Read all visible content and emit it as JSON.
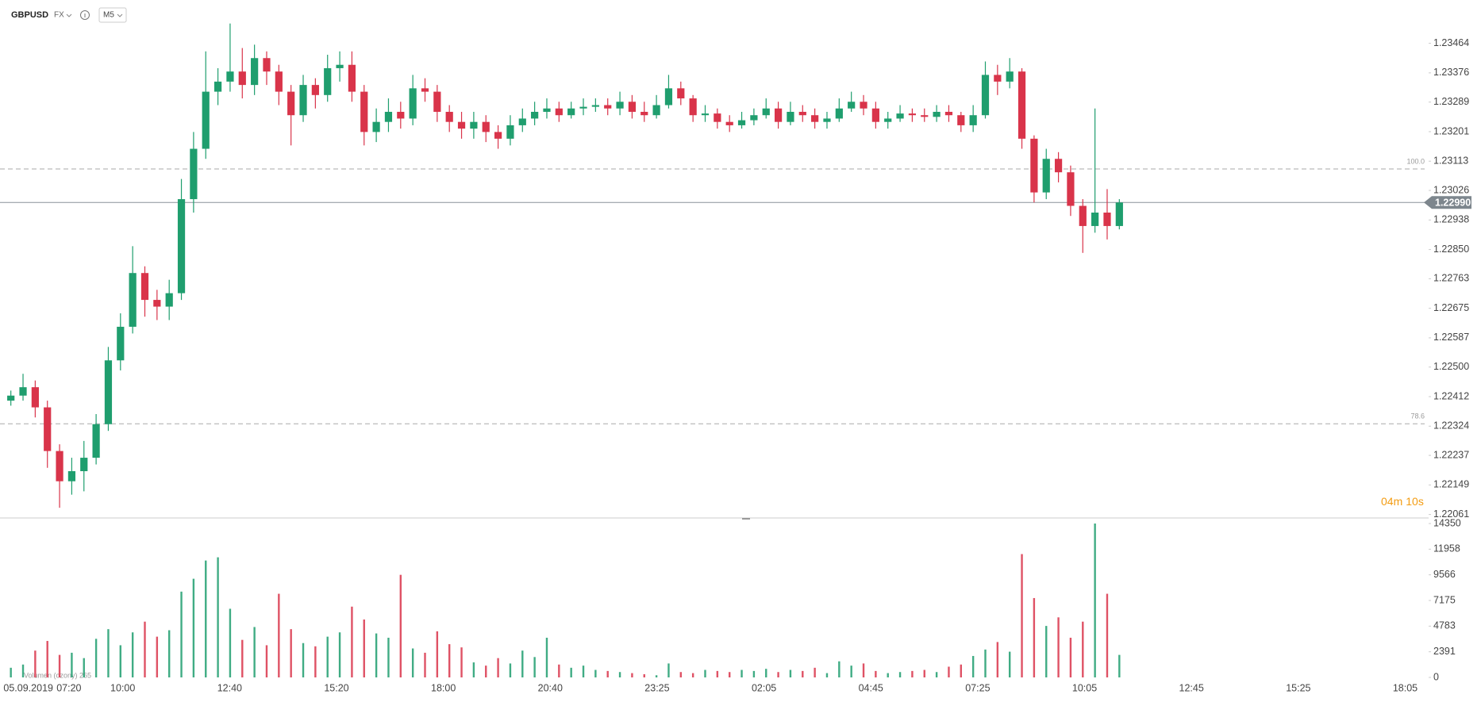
{
  "chart_data": {
    "type": "candlestick",
    "symbol": "GBPUSD",
    "market": "FX",
    "timeframe": "M5",
    "up_color": "#1f9e6e",
    "down_color": "#d9344a",
    "open": [
      1.224,
      1.22415,
      1.2244,
      1.2238,
      1.2225,
      1.2216,
      1.2219,
      1.2223,
      1.2233,
      1.2252,
      1.2262,
      1.2278,
      1.227,
      1.2268,
      1.2272,
      1.23,
      1.2315,
      1.2332,
      1.2335,
      1.2338,
      1.2334,
      1.2342,
      1.2338,
      1.2332,
      1.2325,
      1.2334,
      1.2331,
      1.2339,
      1.234,
      1.2332,
      1.232,
      1.2323,
      1.2326,
      1.2324,
      1.2333,
      1.2332,
      1.2326,
      1.2323,
      1.2321,
      1.2323,
      1.232,
      1.2318,
      1.2322,
      1.2324,
      1.2326,
      1.2327,
      1.2325,
      1.2327,
      1.23275,
      1.2328,
      1.2327,
      1.2329,
      1.2326,
      1.2325,
      1.2328,
      1.2333,
      1.233,
      1.2325,
      1.23255,
      1.2323,
      1.2322,
      1.23235,
      1.2325,
      1.2327,
      1.2323,
      1.2326,
      1.2325,
      1.2323,
      1.2324,
      1.2327,
      1.2329,
      1.2327,
      1.2323,
      1.2324,
      1.23255,
      1.2325,
      1.23245,
      1.2326,
      1.2325,
      1.2322,
      1.2325,
      1.2337,
      1.2335,
      1.2338,
      1.2318,
      1.2302,
      1.2312,
      1.2308,
      1.2298,
      1.2292,
      1.2296,
      1.2292
    ],
    "high": [
      1.2243,
      1.2248,
      1.2246,
      1.224,
      1.2227,
      1.2223,
      1.2228,
      1.2236,
      1.2256,
      1.2266,
      1.2286,
      1.228,
      1.2273,
      1.2276,
      1.2306,
      1.232,
      1.2344,
      1.2339,
      1.23523,
      1.2345,
      1.2346,
      1.2344,
      1.234,
      1.2334,
      1.2337,
      1.2336,
      1.2343,
      1.2344,
      1.2344,
      1.2334,
      1.2327,
      1.233,
      1.2329,
      1.2337,
      1.2336,
      1.2334,
      1.2328,
      1.2326,
      1.2326,
      1.2325,
      1.2322,
      1.2325,
      1.2327,
      1.2329,
      1.233,
      1.2329,
      1.2329,
      1.233,
      1.233,
      1.233,
      1.2332,
      1.2331,
      1.2329,
      1.2331,
      1.2337,
      1.2335,
      1.2331,
      1.2328,
      1.2327,
      1.2325,
      1.2326,
      1.2327,
      1.233,
      1.2329,
      1.2329,
      1.2328,
      1.2327,
      1.2326,
      1.233,
      1.2332,
      1.2331,
      1.2329,
      1.2326,
      1.2328,
      1.2327,
      1.2327,
      1.2328,
      1.2328,
      1.2326,
      1.2328,
      1.2341,
      1.234,
      1.2342,
      1.2339,
      1.2319,
      1.2315,
      1.2314,
      1.231,
      1.23,
      1.2327,
      1.2303,
      1.23
    ],
    "low": [
      1.22385,
      1.224,
      1.2235,
      1.222,
      1.22081,
      1.2212,
      1.2213,
      1.2221,
      1.2231,
      1.2249,
      1.226,
      1.2265,
      1.2264,
      1.2264,
      1.227,
      1.2296,
      1.2312,
      1.2328,
      1.2332,
      1.233,
      1.2331,
      1.2334,
      1.2328,
      1.2316,
      1.2323,
      1.2327,
      1.2329,
      1.2335,
      1.2329,
      1.2316,
      1.2317,
      1.232,
      1.2321,
      1.2322,
      1.2329,
      1.2323,
      1.232,
      1.2318,
      1.2318,
      1.2317,
      1.2315,
      1.2316,
      1.232,
      1.2322,
      1.2324,
      1.2323,
      1.2324,
      1.2325,
      1.2326,
      1.2325,
      1.2325,
      1.2324,
      1.2323,
      1.2324,
      1.2327,
      1.2328,
      1.2323,
      1.2323,
      1.2321,
      1.232,
      1.2321,
      1.2322,
      1.2324,
      1.2321,
      1.2322,
      1.2323,
      1.2321,
      1.2321,
      1.2323,
      1.2326,
      1.2325,
      1.2321,
      1.2321,
      1.2323,
      1.2323,
      1.2323,
      1.2323,
      1.2323,
      1.232,
      1.232,
      1.2324,
      1.2331,
      1.2333,
      1.2315,
      1.2299,
      1.23,
      1.2305,
      1.2295,
      1.2284,
      1.229,
      1.2288,
      1.2291
    ],
    "close": [
      1.22415,
      1.2244,
      1.2238,
      1.2225,
      1.2216,
      1.2219,
      1.2223,
      1.2233,
      1.2252,
      1.2262,
      1.2278,
      1.227,
      1.2268,
      1.2272,
      1.23,
      1.2315,
      1.2332,
      1.2335,
      1.2338,
      1.2334,
      1.2342,
      1.2338,
      1.2332,
      1.2325,
      1.2334,
      1.2331,
      1.2339,
      1.234,
      1.2332,
      1.232,
      1.2323,
      1.2326,
      1.2324,
      1.2333,
      1.2332,
      1.2326,
      1.2323,
      1.2321,
      1.2323,
      1.232,
      1.2318,
      1.2322,
      1.2324,
      1.2326,
      1.2327,
      1.2325,
      1.2327,
      1.23275,
      1.2328,
      1.2327,
      1.2329,
      1.2326,
      1.2325,
      1.2328,
      1.2333,
      1.233,
      1.2325,
      1.23255,
      1.2323,
      1.2322,
      1.23235,
      1.2325,
      1.2327,
      1.2323,
      1.2326,
      1.2325,
      1.2323,
      1.2324,
      1.2327,
      1.2329,
      1.2327,
      1.2323,
      1.2324,
      1.23255,
      1.2325,
      1.23245,
      1.2326,
      1.2325,
      1.2322,
      1.2325,
      1.2337,
      1.2335,
      1.2338,
      1.2318,
      1.2302,
      1.2312,
      1.2308,
      1.2298,
      1.2292,
      1.2296,
      1.2292,
      1.2299
    ],
    "volume": [
      900,
      1200,
      2500,
      3400,
      2100,
      2300,
      1800,
      3600,
      4500,
      3000,
      4200,
      5200,
      3800,
      4400,
      8000,
      9200,
      10900,
      11200,
      6400,
      3500,
      4700,
      3000,
      7800,
      4500,
      3200,
      2900,
      3800,
      4200,
      6600,
      5400,
      4100,
      3700,
      9566,
      2700,
      2300,
      4300,
      3100,
      2800,
      1400,
      1100,
      1800,
      1300,
      2500,
      1900,
      3700,
      1200,
      900,
      1100,
      700,
      600,
      500,
      400,
      300,
      200,
      1300,
      500,
      400,
      700,
      600,
      500,
      700,
      600,
      800,
      500,
      700,
      600,
      900,
      400,
      1500,
      1100,
      1300,
      600,
      400,
      500,
      600,
      700,
      500,
      1000,
      1200,
      2000,
      2600,
      3300,
      2400,
      11500,
      7400,
      4800,
      5600,
      3700,
      5200,
      14350,
      7800,
      2100
    ],
    "ylim": [
      1.22053,
      1.23593
    ],
    "yticks": [
      1.23464,
      1.23376,
      1.23289,
      1.23201,
      1.23113,
      1.23026,
      1.22938,
      {
        "value": 1.2285,
        "label": "1.22850"
      },
      1.22763,
      1.22675,
      1.22587,
      {
        "value": 1.225,
        "label": "1.22500"
      },
      1.22412,
      1.22324,
      1.22237,
      1.22149,
      1.22061
    ],
    "volume_ylim": [
      0,
      14350
    ],
    "volume_yticks": [
      0,
      2391,
      4783,
      7175,
      9566,
      11958,
      14350
    ],
    "xtick_labels": [
      "05.09.2019",
      "07:20",
      "10:00",
      "12:40",
      "15:20",
      "18:00",
      "20:40",
      "23:25",
      "02:05",
      "04:45",
      "07:25",
      "10:05",
      "12:45",
      "15:25",
      "18:05"
    ],
    "last_price": {
      "value": 1.2299,
      "label": "1.22990"
    },
    "fib_levels": [
      {
        "label": "100.0",
        "price": 1.2309
      },
      {
        "label": "78.6",
        "price": 1.22331
      }
    ],
    "countdown": {
      "minutes": "04",
      "minutes_unit": "m",
      "seconds": "10",
      "seconds_unit": "s"
    },
    "volume_label": "Volumen (ozony) 265"
  }
}
